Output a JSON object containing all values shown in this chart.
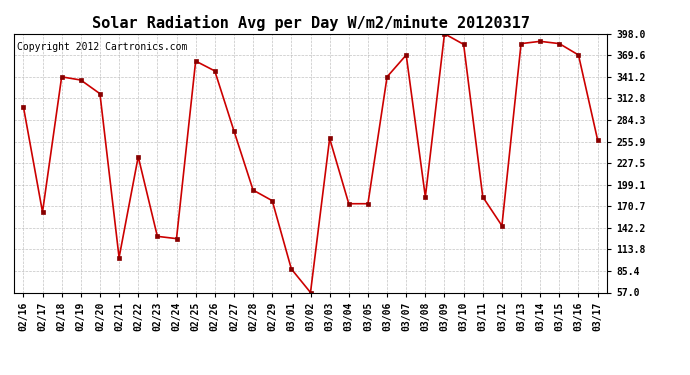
{
  "title": "Solar Radiation Avg per Day W/m2/minute 20120317",
  "copyright": "Copyright 2012 Cartronics.com",
  "dates": [
    "02/16",
    "02/17",
    "02/18",
    "02/19",
    "02/20",
    "02/21",
    "02/22",
    "02/23",
    "02/24",
    "02/25",
    "02/26",
    "02/27",
    "02/28",
    "02/29",
    "03/01",
    "03/02",
    "03/03",
    "03/04",
    "03/05",
    "03/06",
    "03/07",
    "03/08",
    "03/09",
    "03/10",
    "03/11",
    "03/12",
    "03/13",
    "03/14",
    "03/15",
    "03/16",
    "03/17"
  ],
  "values": [
    302.0,
    163.0,
    341.2,
    337.0,
    319.0,
    103.0,
    236.0,
    131.0,
    128.0,
    362.0,
    349.0,
    270.0,
    192.0,
    178.0,
    88.0,
    57.0,
    260.0,
    174.0,
    174.0,
    341.2,
    370.0,
    183.0,
    398.0,
    384.0,
    183.0,
    145.0,
    385.0,
    388.0,
    385.0,
    370.0,
    258.0
  ],
  "line_color": "#cc0000",
  "marker_color": "#880000",
  "bg_color": "#ffffff",
  "plot_bg": "#ffffff",
  "grid_color": "#aaaaaa",
  "ylim": [
    57.0,
    398.0
  ],
  "yticks": [
    398.0,
    369.6,
    341.2,
    312.8,
    284.3,
    255.9,
    227.5,
    199.1,
    170.7,
    142.2,
    113.8,
    85.4,
    57.0
  ],
  "title_fontsize": 11,
  "copyright_fontsize": 7,
  "tick_fontsize": 7
}
